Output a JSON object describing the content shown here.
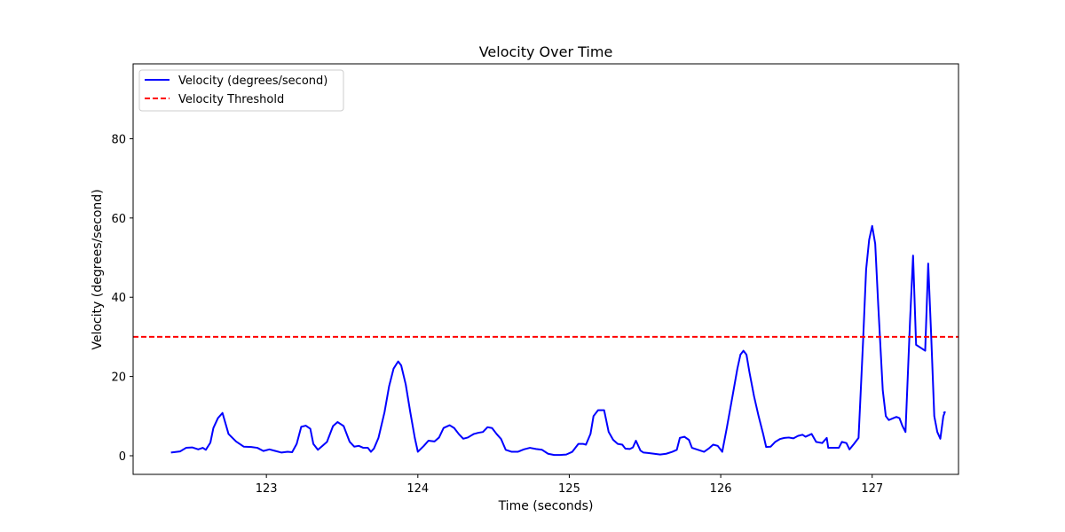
{
  "chart_data": {
    "type": "line",
    "title": "Velocity Over Time",
    "xlabel": "Time (seconds)",
    "ylabel": "Velocity (degrees/second)",
    "xlim": [
      122.12,
      127.57
    ],
    "ylim": [
      -4.7,
      98.9
    ],
    "xticks": [
      123,
      124,
      125,
      126,
      127
    ],
    "yticks": [
      0,
      20,
      40,
      60,
      80
    ],
    "grid": false,
    "legend_position": "top-left",
    "series": [
      {
        "name": "Velocity (degrees/second)",
        "color": "#0000ff",
        "style": "solid",
        "points": [
          [
            122.37,
            0.8
          ],
          [
            122.43,
            1.1
          ],
          [
            122.47,
            2.0
          ],
          [
            122.51,
            2.1
          ],
          [
            122.55,
            1.6
          ],
          [
            122.58,
            2.0
          ],
          [
            122.6,
            1.5
          ],
          [
            122.63,
            3.3
          ],
          [
            122.65,
            7.0
          ],
          [
            122.68,
            9.5
          ],
          [
            122.71,
            10.8
          ],
          [
            122.75,
            5.5
          ],
          [
            122.8,
            3.6
          ],
          [
            122.85,
            2.3
          ],
          [
            122.9,
            2.2
          ],
          [
            122.94,
            2.0
          ],
          [
            122.98,
            1.2
          ],
          [
            123.02,
            1.6
          ],
          [
            123.06,
            1.2
          ],
          [
            123.1,
            0.8
          ],
          [
            123.14,
            1.0
          ],
          [
            123.17,
            0.9
          ],
          [
            123.2,
            3.0
          ],
          [
            123.23,
            7.3
          ],
          [
            123.26,
            7.6
          ],
          [
            123.29,
            6.8
          ],
          [
            123.31,
            3.0
          ],
          [
            123.34,
            1.5
          ],
          [
            123.37,
            2.5
          ],
          [
            123.4,
            3.5
          ],
          [
            123.44,
            7.5
          ],
          [
            123.47,
            8.5
          ],
          [
            123.51,
            7.5
          ],
          [
            123.55,
            3.5
          ],
          [
            123.58,
            2.3
          ],
          [
            123.61,
            2.5
          ],
          [
            123.64,
            2.0
          ],
          [
            123.67,
            2.0
          ],
          [
            123.69,
            1.0
          ],
          [
            123.71,
            1.8
          ],
          [
            123.74,
            4.5
          ],
          [
            123.78,
            11.0
          ],
          [
            123.81,
            17.5
          ],
          [
            123.84,
            22.0
          ],
          [
            123.87,
            23.8
          ],
          [
            123.89,
            22.8
          ],
          [
            123.92,
            18.0
          ],
          [
            123.95,
            11.0
          ],
          [
            123.98,
            4.5
          ],
          [
            124.0,
            1.0
          ],
          [
            124.04,
            2.5
          ],
          [
            124.07,
            3.8
          ],
          [
            124.11,
            3.6
          ],
          [
            124.14,
            4.6
          ],
          [
            124.17,
            7.0
          ],
          [
            124.21,
            7.7
          ],
          [
            124.24,
            7.0
          ],
          [
            124.27,
            5.5
          ],
          [
            124.3,
            4.3
          ],
          [
            124.33,
            4.6
          ],
          [
            124.37,
            5.5
          ],
          [
            124.4,
            5.8
          ],
          [
            124.43,
            6.0
          ],
          [
            124.46,
            7.2
          ],
          [
            124.49,
            7.0
          ],
          [
            124.52,
            5.5
          ],
          [
            124.55,
            4.2
          ],
          [
            124.58,
            1.5
          ],
          [
            124.62,
            1.0
          ],
          [
            124.66,
            1.0
          ],
          [
            124.7,
            1.6
          ],
          [
            124.74,
            2.0
          ],
          [
            124.78,
            1.7
          ],
          [
            124.82,
            1.5
          ],
          [
            124.86,
            0.5
          ],
          [
            124.9,
            0.2
          ],
          [
            124.94,
            0.2
          ],
          [
            124.98,
            0.3
          ],
          [
            125.02,
            1.0
          ],
          [
            125.06,
            3.0
          ],
          [
            125.09,
            3.0
          ],
          [
            125.11,
            2.8
          ],
          [
            125.14,
            5.5
          ],
          [
            125.16,
            10.0
          ],
          [
            125.19,
            11.5
          ],
          [
            125.23,
            11.5
          ],
          [
            125.26,
            6.0
          ],
          [
            125.29,
            4.0
          ],
          [
            125.32,
            3.0
          ],
          [
            125.35,
            2.8
          ],
          [
            125.37,
            1.8
          ],
          [
            125.4,
            1.7
          ],
          [
            125.42,
            2.1
          ],
          [
            125.44,
            3.8
          ],
          [
            125.47,
            1.3
          ],
          [
            125.49,
            0.8
          ],
          [
            125.52,
            0.7
          ],
          [
            125.56,
            0.5
          ],
          [
            125.6,
            0.3
          ],
          [
            125.64,
            0.5
          ],
          [
            125.68,
            1.0
          ],
          [
            125.71,
            1.5
          ],
          [
            125.73,
            4.5
          ],
          [
            125.76,
            4.8
          ],
          [
            125.79,
            4.0
          ],
          [
            125.81,
            2.0
          ],
          [
            125.85,
            1.5
          ],
          [
            125.89,
            1.0
          ],
          [
            125.92,
            1.8
          ],
          [
            125.95,
            2.8
          ],
          [
            125.98,
            2.5
          ],
          [
            126.01,
            1.0
          ],
          [
            126.04,
            7.0
          ],
          [
            126.08,
            15.5
          ],
          [
            126.11,
            22.0
          ],
          [
            126.13,
            25.5
          ],
          [
            126.15,
            26.5
          ],
          [
            126.17,
            25.5
          ],
          [
            126.19,
            21.0
          ],
          [
            126.22,
            15.0
          ],
          [
            126.25,
            10.0
          ],
          [
            126.28,
            5.5
          ],
          [
            126.3,
            2.2
          ],
          [
            126.33,
            2.3
          ],
          [
            126.36,
            3.5
          ],
          [
            126.39,
            4.2
          ],
          [
            126.42,
            4.5
          ],
          [
            126.45,
            4.6
          ],
          [
            126.48,
            4.4
          ],
          [
            126.51,
            5.0
          ],
          [
            126.54,
            5.3
          ],
          [
            126.56,
            4.8
          ],
          [
            126.6,
            5.5
          ],
          [
            126.63,
            3.5
          ],
          [
            126.67,
            3.2
          ],
          [
            126.7,
            4.5
          ],
          [
            126.71,
            2.0
          ],
          [
            126.74,
            2.0
          ],
          [
            126.78,
            2.0
          ],
          [
            126.8,
            3.5
          ],
          [
            126.83,
            3.2
          ],
          [
            126.85,
            1.6
          ],
          [
            126.88,
            3.0
          ],
          [
            126.91,
            4.5
          ],
          [
            126.94,
            29.0
          ],
          [
            126.96,
            47.0
          ],
          [
            126.98,
            54.5
          ],
          [
            127.0,
            58.0
          ],
          [
            127.02,
            53.5
          ],
          [
            127.04,
            38.0
          ],
          [
            127.07,
            16.5
          ],
          [
            127.09,
            10.0
          ],
          [
            127.11,
            9.0
          ],
          [
            127.14,
            9.5
          ],
          [
            127.16,
            9.8
          ],
          [
            127.18,
            9.5
          ],
          [
            127.2,
            7.5
          ],
          [
            127.22,
            6.0
          ],
          [
            127.25,
            34.0
          ],
          [
            127.27,
            50.5
          ],
          [
            127.29,
            28.0
          ],
          [
            127.31,
            27.5
          ],
          [
            127.33,
            27.0
          ],
          [
            127.35,
            26.5
          ],
          [
            127.37,
            48.5
          ],
          [
            127.39,
            30.0
          ],
          [
            127.41,
            10.0
          ],
          [
            127.43,
            6.0
          ],
          [
            127.45,
            4.3
          ],
          [
            127.47,
            10.0
          ],
          [
            127.48,
            11.0
          ],
          [
            127.47,
            10.8
          ]
        ]
      },
      {
        "name": "Velocity Threshold",
        "color": "#ff0000",
        "style": "dashed",
        "y": 30
      }
    ]
  }
}
